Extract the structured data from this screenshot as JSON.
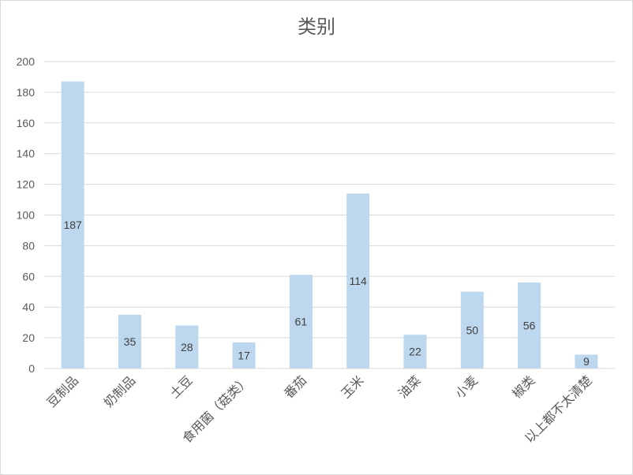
{
  "chart_data": {
    "type": "bar",
    "title": "类别",
    "categories": [
      "豆制品",
      "奶制品",
      "土豆",
      "食用菌（菇类）",
      "番茄",
      "玉米",
      "油菜",
      "小麦",
      "椒类",
      "以上都不太清楚"
    ],
    "values": [
      187,
      35,
      28,
      17,
      61,
      114,
      22,
      50,
      56,
      9
    ],
    "data_labels": [
      "187",
      "35",
      "28",
      "17",
      "61",
      "114",
      "22",
      "50",
      "56",
      "9"
    ],
    "xlabel": "",
    "ylabel": "",
    "ylim": [
      0,
      200
    ],
    "yticks": [
      0,
      20,
      40,
      60,
      80,
      100,
      120,
      140,
      160,
      180,
      200
    ],
    "grid": true,
    "legend": "none",
    "colors": {
      "bar": "#bdd7ee",
      "grid": "#d9d9d9",
      "axis_text": "#595959",
      "label_text": "#404040"
    }
  }
}
